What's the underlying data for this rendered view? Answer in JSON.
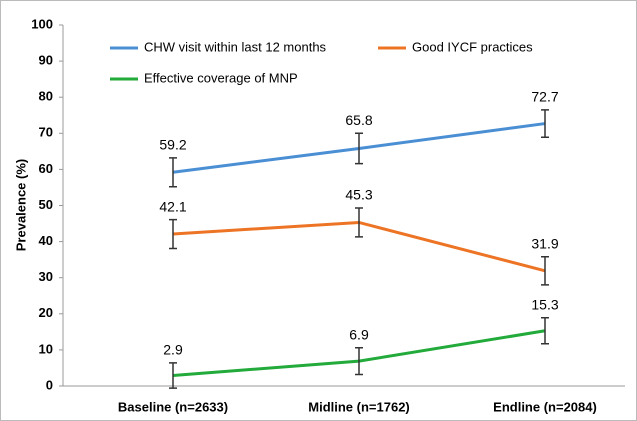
{
  "chart_data": {
    "type": "line",
    "y_label": "Prevalence (%)",
    "categories": [
      "Baseline (n=2633)",
      "Midline (n=1762)",
      "Endline (n=2084)"
    ],
    "series": [
      {
        "name": "CHW visit within last 12 months",
        "color": "#4a8fd4",
        "values": [
          59.2,
          65.8,
          72.7
        ],
        "errors": [
          4,
          4.2,
          3.8
        ]
      },
      {
        "name": "Good IYCF practices",
        "color": "#ed7424",
        "values": [
          42.1,
          45.3,
          31.9
        ],
        "errors": [
          4,
          4,
          3.9
        ]
      },
      {
        "name": "Effective coverage of MNP",
        "color": "#22aa3a",
        "values": [
          2.9,
          6.9,
          15.3
        ],
        "errors": [
          3.5,
          3.7,
          3.6
        ]
      }
    ],
    "ylim": [
      0,
      100
    ],
    "yticks": [
      0,
      10,
      20,
      30,
      40,
      50,
      60,
      70,
      80,
      90,
      100
    ],
    "grid": false
  }
}
